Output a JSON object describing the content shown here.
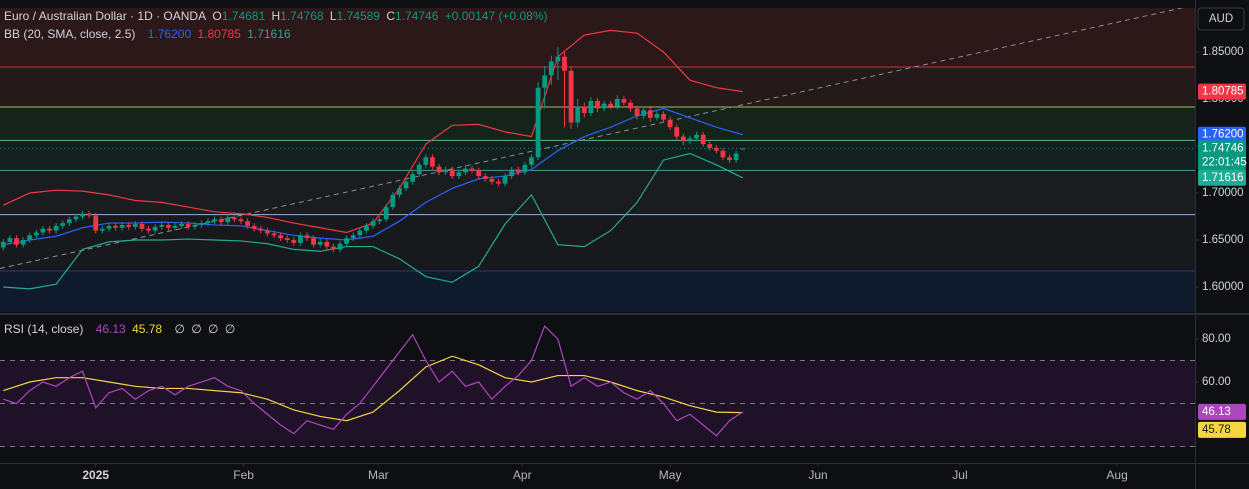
{
  "chart_data": [
    {
      "type": "candlestick",
      "title": "Euro / Australian Dollar · 1D · OANDA",
      "ohlc_labels": [
        "O",
        "H",
        "L",
        "C"
      ],
      "change": "+0.00147 (+0.08%)",
      "currency": "AUD",
      "countdown": "22:01:45",
      "up_color": "#089981",
      "down_color": "#f23645",
      "open": [
        1.642,
        1.648,
        1.652,
        1.645,
        1.65,
        1.655,
        1.658,
        1.662,
        1.66,
        1.665,
        1.668,
        1.672,
        1.675,
        1.678,
        1.676,
        1.66,
        1.662,
        1.665,
        1.663,
        1.666,
        1.664,
        1.667,
        1.662,
        1.66,
        1.664,
        1.666,
        1.663,
        1.665,
        1.667,
        1.664,
        1.666,
        1.668,
        1.67,
        1.672,
        1.669,
        1.674,
        1.672,
        1.67,
        1.665,
        1.662,
        1.66,
        1.657,
        1.655,
        1.652,
        1.65,
        1.647,
        1.655,
        1.652,
        1.645,
        1.648,
        1.643,
        1.64,
        1.646,
        1.652,
        1.655,
        1.66,
        1.665,
        1.67,
        1.672,
        1.685,
        1.698,
        1.705,
        1.712,
        1.72,
        1.73,
        1.738,
        1.728,
        1.722,
        1.725,
        1.718,
        1.722,
        1.726,
        1.724,
        1.718,
        1.715,
        1.712,
        1.71,
        1.718,
        1.725,
        1.722,
        1.73,
        1.738,
        1.812,
        1.825,
        1.84,
        1.845,
        1.83,
        1.775,
        1.792,
        1.785,
        1.798,
        1.79,
        1.795,
        1.792,
        1.8,
        1.796,
        1.79,
        1.782,
        1.788,
        1.78,
        1.784,
        1.778,
        1.77,
        1.76,
        1.755,
        1.758,
        1.762,
        1.752,
        1.748,
        1.745,
        1.738,
        1.735,
        1.74681
      ],
      "high": [
        1.651,
        1.655,
        1.655,
        1.653,
        1.658,
        1.661,
        1.665,
        1.665,
        1.668,
        1.671,
        1.675,
        1.678,
        1.681,
        1.681,
        1.679,
        1.665,
        1.668,
        1.668,
        1.669,
        1.669,
        1.67,
        1.67,
        1.665,
        1.667,
        1.669,
        1.669,
        1.668,
        1.67,
        1.67,
        1.669,
        1.671,
        1.673,
        1.675,
        1.675,
        1.677,
        1.677,
        1.675,
        1.673,
        1.668,
        1.665,
        1.663,
        1.66,
        1.658,
        1.655,
        1.653,
        1.658,
        1.658,
        1.655,
        1.651,
        1.651,
        1.646,
        1.649,
        1.655,
        1.658,
        1.663,
        1.668,
        1.673,
        1.675,
        1.688,
        1.701,
        1.708,
        1.715,
        1.723,
        1.733,
        1.741,
        1.741,
        1.731,
        1.728,
        1.728,
        1.725,
        1.729,
        1.729,
        1.727,
        1.721,
        1.718,
        1.715,
        1.721,
        1.728,
        1.728,
        1.733,
        1.741,
        1.818,
        1.835,
        1.846,
        1.855,
        1.85,
        1.834,
        1.8,
        1.796,
        1.802,
        1.801,
        1.798,
        1.798,
        1.804,
        1.803,
        1.799,
        1.793,
        1.792,
        1.791,
        1.787,
        1.787,
        1.781,
        1.773,
        1.763,
        1.761,
        1.765,
        1.765,
        1.755,
        1.751,
        1.748,
        1.741,
        1.745,
        1.74768
      ],
      "low": [
        1.639,
        1.645,
        1.642,
        1.642,
        1.647,
        1.652,
        1.655,
        1.657,
        1.657,
        1.662,
        1.665,
        1.669,
        1.672,
        1.673,
        1.657,
        1.657,
        1.659,
        1.66,
        1.66,
        1.661,
        1.661,
        1.659,
        1.657,
        1.657,
        1.661,
        1.66,
        1.66,
        1.662,
        1.661,
        1.661,
        1.663,
        1.665,
        1.667,
        1.666,
        1.666,
        1.669,
        1.667,
        1.662,
        1.659,
        1.657,
        1.654,
        1.652,
        1.649,
        1.647,
        1.644,
        1.644,
        1.649,
        1.642,
        1.642,
        1.64,
        1.637,
        1.637,
        1.643,
        1.649,
        1.652,
        1.657,
        1.662,
        1.667,
        1.669,
        1.682,
        1.695,
        1.702,
        1.709,
        1.717,
        1.727,
        1.725,
        1.719,
        1.719,
        1.715,
        1.715,
        1.719,
        1.721,
        1.715,
        1.712,
        1.709,
        1.707,
        1.707,
        1.715,
        1.719,
        1.719,
        1.727,
        1.735,
        1.79,
        1.815,
        1.82,
        1.77,
        1.768,
        1.77,
        1.78,
        1.782,
        1.786,
        1.787,
        1.789,
        1.789,
        1.793,
        1.786,
        1.778,
        1.779,
        1.776,
        1.777,
        1.775,
        1.767,
        1.757,
        1.751,
        1.752,
        1.755,
        1.749,
        1.745,
        1.742,
        1.735,
        1.732,
        1.732,
        1.74589
      ],
      "close": [
        1.648,
        1.652,
        1.645,
        1.65,
        1.655,
        1.658,
        1.662,
        1.66,
        1.665,
        1.668,
        1.672,
        1.675,
        1.678,
        1.676,
        1.66,
        1.662,
        1.665,
        1.663,
        1.666,
        1.664,
        1.667,
        1.662,
        1.66,
        1.664,
        1.666,
        1.663,
        1.665,
        1.667,
        1.664,
        1.666,
        1.668,
        1.67,
        1.672,
        1.669,
        1.674,
        1.672,
        1.67,
        1.665,
        1.662,
        1.66,
        1.657,
        1.655,
        1.652,
        1.65,
        1.647,
        1.655,
        1.652,
        1.645,
        1.648,
        1.643,
        1.64,
        1.646,
        1.652,
        1.655,
        1.66,
        1.665,
        1.67,
        1.672,
        1.685,
        1.698,
        1.705,
        1.712,
        1.72,
        1.73,
        1.738,
        1.728,
        1.722,
        1.725,
        1.718,
        1.722,
        1.726,
        1.724,
        1.718,
        1.715,
        1.712,
        1.71,
        1.718,
        1.725,
        1.722,
        1.73,
        1.738,
        1.812,
        1.825,
        1.84,
        1.845,
        1.83,
        1.775,
        1.792,
        1.785,
        1.798,
        1.79,
        1.795,
        1.792,
        1.8,
        1.796,
        1.79,
        1.782,
        1.788,
        1.78,
        1.784,
        1.778,
        1.77,
        1.76,
        1.755,
        1.758,
        1.762,
        1.752,
        1.748,
        1.745,
        1.738,
        1.735,
        1.742,
        1.74746
      ],
      "indicator": {
        "title": "BB (20, SMA, close, 2.5)",
        "x": [
          0,
          4,
          8,
          12,
          16,
          20,
          24,
          28,
          32,
          36,
          40,
          44,
          48,
          52,
          56,
          60,
          64,
          68,
          72,
          76,
          80,
          84,
          88,
          92,
          96,
          100,
          104,
          108,
          112
        ],
        "series": [
          {
            "color": "#2962ff",
            "values": [
              1.645,
              1.65,
              1.654,
              1.663,
              1.668,
              1.668,
              1.669,
              1.668,
              1.666,
              1.665,
              1.66,
              1.655,
              1.652,
              1.65,
              1.654,
              1.67,
              1.69,
              1.705,
              1.715,
              1.718,
              1.725,
              1.745,
              1.76,
              1.77,
              1.782,
              1.79,
              1.78,
              1.77,
              1.762
            ],
            "value_labels": [
              null,
              null,
              null,
              null,
              null,
              null,
              null,
              null,
              null,
              null,
              null,
              null,
              null,
              null,
              null,
              null,
              null,
              null,
              null,
              null,
              null,
              null,
              null,
              null,
              null,
              null,
              null,
              null,
              "1.76200"
            ]
          },
          {
            "color": "#f23645",
            "values": [
              1.687,
              1.7,
              1.703,
              1.702,
              1.698,
              1.692,
              1.69,
              1.685,
              1.68,
              1.678,
              1.674,
              1.668,
              1.663,
              1.658,
              1.668,
              1.705,
              1.752,
              1.772,
              1.773,
              1.765,
              1.76,
              1.845,
              1.868,
              1.873,
              1.87,
              1.85,
              1.82,
              1.812,
              1.80785
            ]
          },
          {
            "color": "#22ab94",
            "values": [
              1.6,
              1.598,
              1.603,
              1.64,
              1.648,
              1.65,
              1.65,
              1.651,
              1.65,
              1.649,
              1.646,
              1.64,
              1.638,
              1.643,
              1.643,
              1.63,
              1.611,
              1.605,
              1.622,
              1.667,
              1.698,
              1.645,
              1.643,
              1.66,
              1.69,
              1.735,
              1.742,
              1.73,
              1.71616
            ]
          }
        ]
      },
      "zones": [
        {
          "from": 1.834,
          "to": 1.8968,
          "color": "#2c1719"
        },
        {
          "from": 1.7915,
          "to": 1.834,
          "color": "#241a19"
        },
        {
          "from": 1.756,
          "to": 1.7915,
          "color": "#16231a"
        },
        {
          "from": 1.724,
          "to": 1.756,
          "color": "#12211f"
        },
        {
          "from": 1.677,
          "to": 1.724,
          "color": "#1b1c1f"
        },
        {
          "from": 1.617,
          "to": 1.677,
          "color": "#18191c"
        },
        {
          "from": 1.5734,
          "to": 1.617,
          "color": "#0f1a2d"
        }
      ],
      "levels": [
        {
          "value": 1.834,
          "color": "#c2353e"
        },
        {
          "value": 1.7915,
          "color": "#9fbf63"
        },
        {
          "value": 1.756,
          "color": "#5bbf7a"
        },
        {
          "value": 1.724,
          "color": "#3f9d92"
        },
        {
          "value": 1.677,
          "color": "#8fb3d9"
        },
        {
          "value": 1.617,
          "color": "#2b3b6b"
        }
      ],
      "trend_line": {
        "x": [
          -0.5,
          180.5
        ],
        "values": [
          1.6197,
          1.8999
        ]
      },
      "xlim": [
        -0.5,
        180.5
      ],
      "xticks": [
        {
          "value": 14,
          "label": "2025"
        },
        {
          "value": 36.4,
          "label": "Feb"
        },
        {
          "value": 56.8,
          "label": "Mar"
        },
        {
          "value": 78.6,
          "label": "Apr"
        },
        {
          "value": 101,
          "label": "May"
        },
        {
          "value": 123.4,
          "label": "Jun"
        },
        {
          "value": 144.9,
          "label": "Jul"
        },
        {
          "value": 168.7,
          "label": "Aug"
        }
      ],
      "ylim": [
        1.5734,
        1.8968
      ],
      "yticks": [
        {
          "value": 1.85,
          "label": "1.85000"
        },
        {
          "value": 1.8,
          "label": "1.80000"
        },
        {
          "value": 1.75,
          "label": "1.75000"
        },
        {
          "value": 1.7,
          "label": "1.70000"
        },
        {
          "value": 1.65,
          "label": "1.65000"
        },
        {
          "value": 1.6,
          "label": "1.60000"
        }
      ]
    },
    {
      "type": "line",
      "title": "RSI (14, close)",
      "extras": [
        "∅",
        "∅",
        "∅",
        "∅"
      ],
      "series": [
        {
          "color": "#ab47bc",
          "x": [
            0,
            2,
            4,
            6,
            8,
            10,
            12,
            14,
            16,
            18,
            20,
            22,
            24,
            26,
            28,
            30,
            32,
            34,
            36,
            38,
            40,
            42,
            44,
            46,
            48,
            50,
            52,
            54,
            56,
            58,
            60,
            62,
            64,
            66,
            68,
            70,
            72,
            74,
            76,
            78,
            80,
            82,
            84,
            86,
            88,
            90,
            92,
            94,
            96,
            98,
            100,
            102,
            104,
            106,
            108,
            110,
            112
          ],
          "values": [
            52,
            50,
            56,
            60,
            58,
            62,
            65,
            48,
            55,
            57,
            52,
            56,
            58,
            54,
            58,
            60,
            62,
            58,
            56,
            50,
            45,
            40,
            36,
            42,
            40,
            38,
            45,
            50,
            58,
            66,
            74,
            82,
            70,
            60,
            65,
            58,
            60,
            52,
            58,
            63,
            70,
            86,
            80,
            58,
            62,
            58,
            60,
            55,
            52,
            56,
            50,
            42,
            45,
            40,
            35,
            42,
            46.13
          ]
        },
        {
          "color": "#f5d63f",
          "x": [
            0,
            4,
            8,
            12,
            16,
            20,
            24,
            28,
            32,
            36,
            40,
            44,
            48,
            52,
            56,
            60,
            64,
            68,
            72,
            76,
            80,
            84,
            88,
            92,
            96,
            100,
            104,
            108,
            112
          ],
          "values": [
            56,
            60,
            62,
            62,
            60,
            58,
            57,
            57,
            56,
            55,
            52,
            47,
            44,
            42,
            46,
            56,
            67,
            72,
            68,
            62,
            60,
            63,
            63,
            60,
            56,
            53,
            49,
            46,
            45.78
          ]
        }
      ],
      "bands": [
        70,
        50,
        30
      ],
      "band_color": "#1f1228",
      "ylim": [
        22.8,
        90.7
      ],
      "yticks": [
        {
          "value": 80,
          "label": "80.00"
        },
        {
          "value": 60,
          "label": "60.00"
        }
      ]
    }
  ]
}
